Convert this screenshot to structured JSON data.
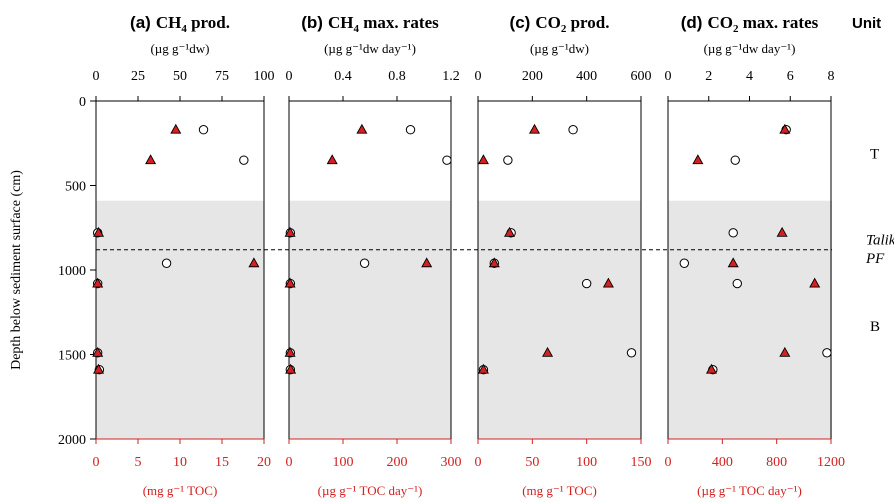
{
  "figure": {
    "y_axis_label": "Depth below sediment surface (cm)",
    "y_ticks": [
      0,
      500,
      1000,
      1500,
      2000
    ],
    "y_range": [
      2000,
      0
    ],
    "shaded_from_depth": 590,
    "boundary_depth": 880,
    "unit_column": {
      "header": "Unit",
      "labels": [
        {
          "text": "T",
          "depth": 310,
          "italic": false
        },
        {
          "text": "Talik",
          "depth": 820,
          "italic": true
        },
        {
          "text": "PF",
          "depth": 930,
          "italic": true
        },
        {
          "text": "B",
          "depth": 1330,
          "italic": false
        }
      ]
    },
    "colors": {
      "marker_fill": "#d42020",
      "shading": "#e6e6e6",
      "bottom_axis": "#d42020"
    }
  },
  "chart_data": [
    {
      "type": "scatter",
      "panel_letter": "(a)",
      "title_main": "CH",
      "title_sub": "4",
      "title_rest": " prod.",
      "top_unit_label": "(µg g⁻¹dw)",
      "bottom_unit_label": "(mg g⁻¹ TOC)",
      "top_axis": {
        "range": [
          0,
          100
        ],
        "ticks": [
          0,
          25,
          50,
          75,
          100
        ]
      },
      "bottom_axis": {
        "range": [
          0,
          20
        ],
        "ticks": [
          0,
          5,
          10,
          15,
          20
        ]
      },
      "series": [
        {
          "marker": "circle",
          "axis": "top",
          "points": [
            [
              64,
              170
            ],
            [
              88,
              350
            ],
            [
              1,
              780
            ],
            [
              42,
              960
            ],
            [
              1,
              1080
            ],
            [
              1,
              1490
            ],
            [
              2,
              1590
            ]
          ]
        },
        {
          "marker": "triangle",
          "axis": "bottom",
          "points": [
            [
              9.5,
              170
            ],
            [
              6.5,
              350
            ],
            [
              0.3,
              780
            ],
            [
              18.8,
              960
            ],
            [
              0.2,
              1080
            ],
            [
              0.2,
              1490
            ],
            [
              0.3,
              1590
            ]
          ]
        }
      ]
    },
    {
      "type": "scatter",
      "panel_letter": "(b)",
      "title_main": "CH",
      "title_sub": "4",
      "title_rest": " max. rates",
      "top_unit_label": "(µg g⁻¹dw  day⁻¹)",
      "bottom_unit_label": "(µg g⁻¹ TOC day⁻¹)",
      "top_axis": {
        "range": [
          0,
          1.2
        ],
        "ticks": [
          0,
          0.4,
          0.8,
          1.2
        ]
      },
      "bottom_axis": {
        "range": [
          0,
          300
        ],
        "ticks": [
          0,
          100,
          200,
          300
        ]
      },
      "series": [
        {
          "marker": "circle",
          "axis": "top",
          "points": [
            [
              0.9,
              170
            ],
            [
              1.17,
              350
            ],
            [
              0.01,
              780
            ],
            [
              0.56,
              960
            ],
            [
              0.01,
              1080
            ],
            [
              0.01,
              1490
            ],
            [
              0.01,
              1590
            ]
          ]
        },
        {
          "marker": "triangle",
          "axis": "bottom",
          "points": [
            [
              135,
              170
            ],
            [
              80,
              350
            ],
            [
              2,
              780
            ],
            [
              255,
              960
            ],
            [
              2,
              1080
            ],
            [
              2,
              1490
            ],
            [
              3,
              1590
            ]
          ]
        }
      ]
    },
    {
      "type": "scatter",
      "panel_letter": "(c)",
      "title_main": "CO",
      "title_sub": "2",
      "title_rest": " prod.",
      "top_unit_label": "(µg g⁻¹dw)",
      "bottom_unit_label": "(mg g⁻¹ TOC)",
      "top_axis": {
        "range": [
          0,
          600
        ],
        "ticks": [
          0,
          200,
          400,
          600
        ]
      },
      "bottom_axis": {
        "range": [
          0,
          150
        ],
        "ticks": [
          0,
          50,
          100,
          150
        ]
      },
      "series": [
        {
          "marker": "circle",
          "axis": "top",
          "points": [
            [
              350,
              170
            ],
            [
              110,
              350
            ],
            [
              122,
              780
            ],
            [
              60,
              960
            ],
            [
              400,
              1080
            ],
            [
              565,
              1490
            ],
            [
              20,
              1590
            ]
          ]
        },
        {
          "marker": "triangle",
          "axis": "bottom",
          "points": [
            [
              52,
              170
            ],
            [
              5,
              350
            ],
            [
              29,
              780
            ],
            [
              15,
              960
            ],
            [
              120,
              1080
            ],
            [
              64,
              1490
            ],
            [
              5,
              1590
            ]
          ]
        }
      ]
    },
    {
      "type": "scatter",
      "panel_letter": "(d)",
      "title_main": "CO",
      "title_sub": "2",
      "title_rest": " max. rates",
      "top_unit_label": "(µg g⁻¹dw  day⁻¹)",
      "bottom_unit_label": "(µg g⁻¹ TOC day⁻¹)",
      "top_axis": {
        "range": [
          0,
          8
        ],
        "ticks": [
          0,
          2,
          4,
          6,
          8
        ]
      },
      "bottom_axis": {
        "range": [
          0,
          1200
        ],
        "ticks": [
          0,
          400,
          800,
          1200
        ]
      },
      "series": [
        {
          "marker": "circle",
          "axis": "top",
          "points": [
            [
              5.8,
              170
            ],
            [
              3.3,
              350
            ],
            [
              3.2,
              780
            ],
            [
              0.8,
              960
            ],
            [
              3.4,
              1080
            ],
            [
              7.8,
              1490
            ],
            [
              2.2,
              1590
            ]
          ]
        },
        {
          "marker": "triangle",
          "axis": "bottom",
          "points": [
            [
              860,
              170
            ],
            [
              220,
              350
            ],
            [
              840,
              780
            ],
            [
              480,
              960
            ],
            [
              1080,
              1080
            ],
            [
              860,
              1490
            ],
            [
              320,
              1590
            ]
          ]
        }
      ]
    }
  ]
}
